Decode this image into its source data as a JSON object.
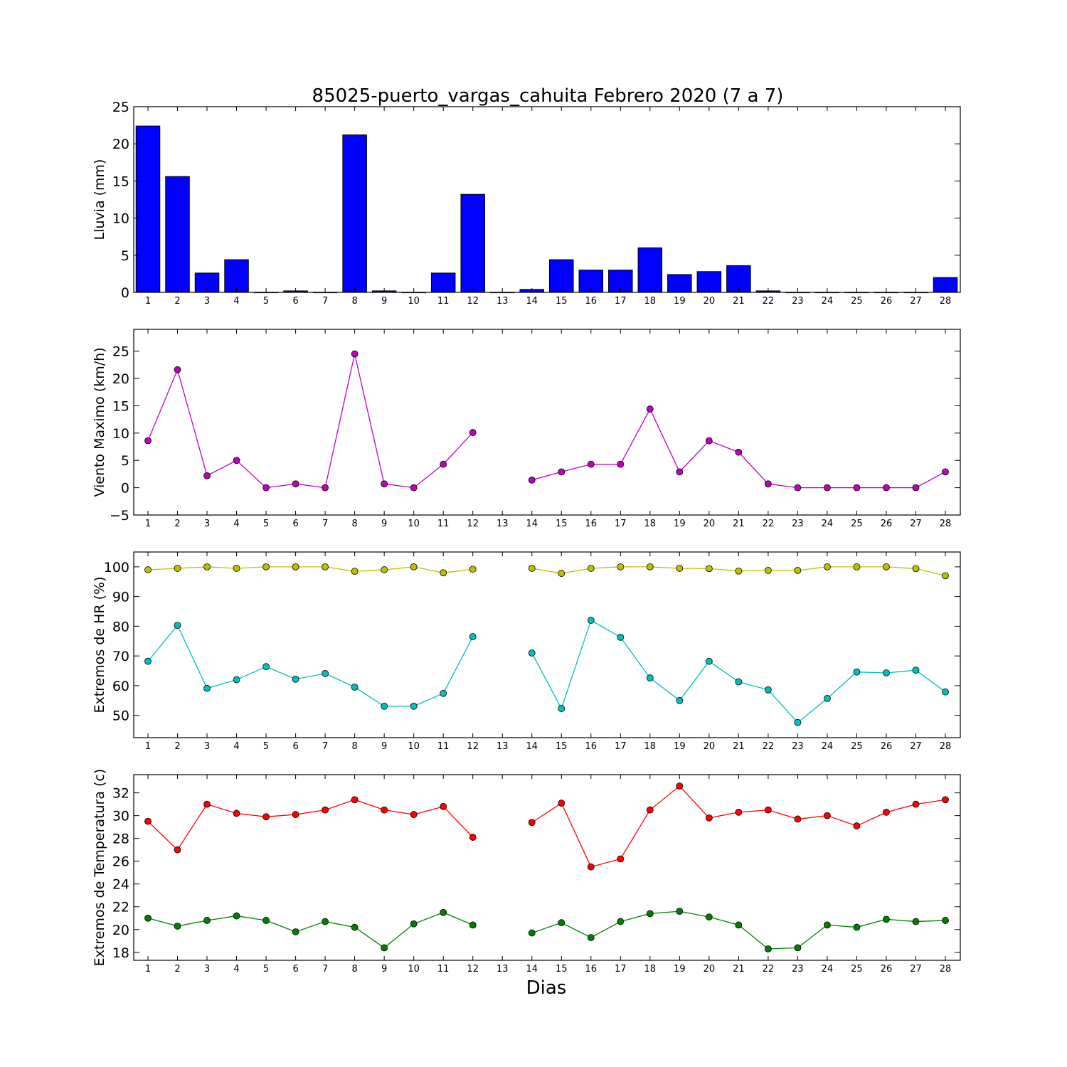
{
  "title": "85025-puerto_vargas_cahuita Febrero 2020  (7 a 7)",
  "xlabel": "Dias",
  "colors": {
    "rain": "#0000ff",
    "wind": "#bf00bf",
    "hr_max": "#bfbf00",
    "hr_min": "#00bfbf",
    "temp_max": "#ff0000",
    "temp_min": "#008000"
  },
  "chart_data": [
    {
      "type": "bar",
      "ylabel": "Lluvia (mm)",
      "ylim": [
        0,
        25
      ],
      "yticks": [
        0,
        5,
        10,
        15,
        20,
        25
      ],
      "categories": [
        "1",
        "2",
        "3",
        "4",
        "5",
        "6",
        "7",
        "8",
        "9",
        "10",
        "11",
        "12",
        "13",
        "14",
        "15",
        "16",
        "17",
        "18",
        "19",
        "20",
        "21",
        "22",
        "23",
        "24",
        "25",
        "26",
        "27",
        "28"
      ],
      "series": [
        {
          "values": [
            22.4,
            15.6,
            2.6,
            4.4,
            0,
            0.2,
            0,
            21.2,
            0.2,
            0,
            2.6,
            13.2,
            0,
            0.4,
            4.4,
            3.0,
            3.0,
            6.0,
            2.4,
            2.8,
            3.6,
            0.2,
            0,
            0,
            0,
            0,
            0,
            2.0
          ],
          "color": "rain"
        }
      ]
    },
    {
      "type": "line",
      "ylabel": "Viento Maximo (km/h)",
      "ylim": [
        -5,
        29
      ],
      "yticks": [
        -5,
        0,
        5,
        10,
        15,
        20,
        25
      ],
      "categories": [
        "1",
        "2",
        "3",
        "4",
        "5",
        "6",
        "7",
        "8",
        "9",
        "10",
        "11",
        "12",
        "13",
        "14",
        "15",
        "16",
        "17",
        "18",
        "19",
        "20",
        "21",
        "22",
        "23",
        "24",
        "25",
        "26",
        "27",
        "28"
      ],
      "series": [
        {
          "values": [
            8.6,
            21.6,
            2.2,
            5.0,
            0,
            0.7,
            0,
            24.5,
            0.7,
            0,
            4.3,
            10.1,
            null,
            1.4,
            2.9,
            4.3,
            4.3,
            14.4,
            2.9,
            8.6,
            6.5,
            0.7,
            0,
            0,
            0,
            0,
            0,
            2.9
          ],
          "color": "wind"
        }
      ]
    },
    {
      "type": "line",
      "ylabel": "Extremos de HR (%)",
      "ylim": [
        42.5,
        105
      ],
      "yticks": [
        50,
        60,
        70,
        80,
        90,
        100
      ],
      "categories": [
        "1",
        "2",
        "3",
        "4",
        "5",
        "6",
        "7",
        "8",
        "9",
        "10",
        "11",
        "12",
        "13",
        "14",
        "15",
        "16",
        "17",
        "18",
        "19",
        "20",
        "21",
        "22",
        "23",
        "24",
        "25",
        "26",
        "27",
        "28"
      ],
      "series": [
        {
          "values": [
            99,
            99.5,
            100,
            99.5,
            100,
            100,
            100,
            98.5,
            99,
            100,
            98,
            99.2,
            null,
            99.5,
            97.8,
            99.5,
            100,
            100,
            99.5,
            99.4,
            98.6,
            98.8,
            98.8,
            100,
            100,
            100,
            99.4,
            97
          ],
          "color": "hr_max"
        },
        {
          "values": [
            68.2,
            80.3,
            59.1,
            62.0,
            66.4,
            62.2,
            64.1,
            59.5,
            53.1,
            53.1,
            57.4,
            76.5,
            null,
            71.0,
            52.3,
            82.0,
            76.3,
            62.6,
            55.0,
            68.2,
            61.3,
            58.6,
            47.6,
            55.7,
            64.6,
            64.3,
            65.2,
            57.9
          ],
          "color": "hr_min"
        }
      ]
    },
    {
      "type": "line",
      "ylabel": "Extremos de Temperatura (c)",
      "ylim": [
        17.3,
        33.6
      ],
      "yticks": [
        18,
        20,
        22,
        24,
        26,
        28,
        30,
        32
      ],
      "categories": [
        "1",
        "2",
        "3",
        "4",
        "5",
        "6",
        "7",
        "8",
        "9",
        "10",
        "11",
        "12",
        "13",
        "14",
        "15",
        "16",
        "17",
        "18",
        "19",
        "20",
        "21",
        "22",
        "23",
        "24",
        "25",
        "26",
        "27",
        "28"
      ],
      "series": [
        {
          "values": [
            29.5,
            27.0,
            31.0,
            30.2,
            29.9,
            30.1,
            30.5,
            31.4,
            30.5,
            30.1,
            30.8,
            28.1,
            null,
            29.4,
            31.1,
            25.5,
            26.2,
            30.5,
            32.6,
            29.8,
            30.3,
            30.5,
            29.7,
            30.0,
            29.1,
            30.3,
            31.0,
            31.4
          ],
          "color": "temp_max"
        },
        {
          "values": [
            21.0,
            20.3,
            20.8,
            21.2,
            20.8,
            19.8,
            20.7,
            20.2,
            18.4,
            20.5,
            21.5,
            20.4,
            null,
            19.7,
            20.6,
            19.3,
            20.7,
            21.4,
            21.6,
            21.1,
            20.4,
            18.3,
            18.4,
            20.4,
            20.2,
            20.9,
            20.7,
            20.8
          ],
          "color": "temp_min"
        }
      ]
    }
  ]
}
